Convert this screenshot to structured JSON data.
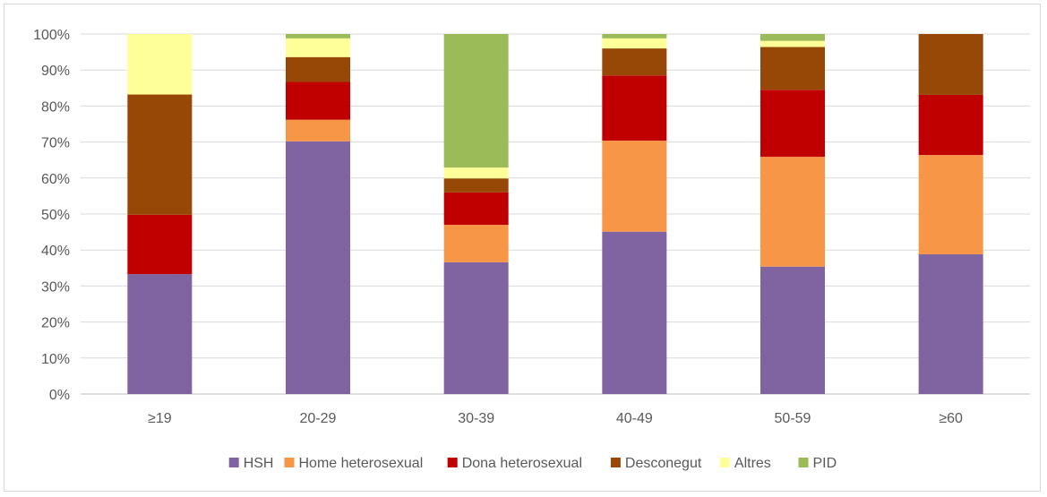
{
  "chart_data": {
    "type": "bar",
    "stacked": true,
    "categories": [
      "≥19",
      "20-29",
      "30-39",
      "40-49",
      "50-59",
      "≥60"
    ],
    "series": [
      {
        "name": "HSH",
        "color": "#8064a2",
        "values": [
          33.3,
          70.2,
          36.6,
          45.1,
          35.4,
          38.8
        ]
      },
      {
        "name": "Home heterosexual",
        "color": "#f79646",
        "values": [
          0,
          6.0,
          10.4,
          25.3,
          30.5,
          27.6
        ]
      },
      {
        "name": "Dona heterosexual",
        "color": "#c00000",
        "values": [
          16.5,
          10.5,
          9.0,
          18.1,
          18.6,
          16.7
        ]
      },
      {
        "name": "Desconegut",
        "color": "#974706",
        "values": [
          33.4,
          6.9,
          3.9,
          7.5,
          11.9,
          16.9
        ]
      },
      {
        "name": "Altres",
        "color": "#ffff99",
        "values": [
          16.8,
          5.2,
          3.0,
          2.8,
          1.7,
          0
        ]
      },
      {
        "name": "PID",
        "color": "#9bbb59",
        "values": [
          0,
          1.2,
          37.1,
          1.2,
          1.9,
          0
        ]
      }
    ],
    "yticks": [
      "0%",
      "10%",
      "20%",
      "30%",
      "40%",
      "50%",
      "60%",
      "70%",
      "80%",
      "90%",
      "100%"
    ],
    "ylim": [
      0,
      100
    ],
    "grid": true,
    "legend": "bottom",
    "title": "",
    "xlabel": "",
    "ylabel": ""
  }
}
